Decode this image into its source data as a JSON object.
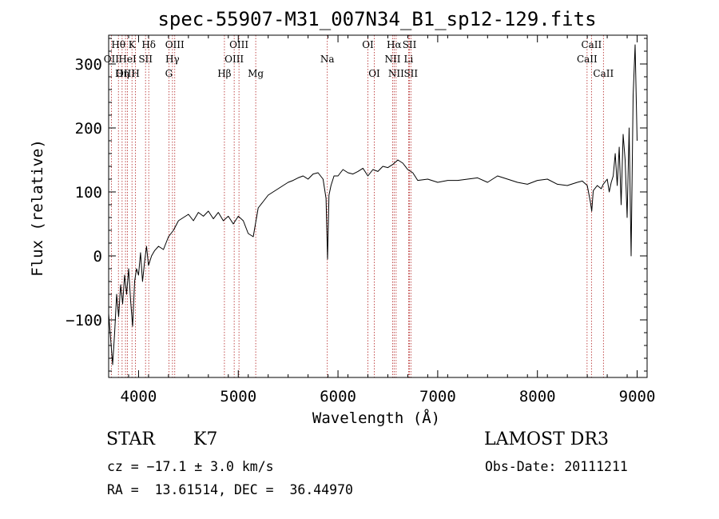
{
  "chart_data": {
    "type": "line",
    "title": "spec-55907-M31_007N34_B1_sp12-129.fits",
    "xlabel": "Wavelength (Å)",
    "ylabel": "Flux (relative)",
    "xlim": [
      3700,
      9100
    ],
    "ylim": [
      -190,
      345
    ],
    "xticks": [
      4000,
      5000,
      6000,
      7000,
      8000,
      9000
    ],
    "yticks": [
      -100,
      0,
      100,
      200,
      300
    ],
    "xtick_labels": [
      "4000",
      "5000",
      "6000",
      "7000",
      "8000",
      "9000"
    ],
    "ytick_labels": [
      "−100",
      "0",
      "100",
      "200",
      "300"
    ],
    "series": [
      {
        "name": "spectrum",
        "x": [
          3700,
          3720,
          3740,
          3760,
          3780,
          3800,
          3820,
          3840,
          3860,
          3880,
          3900,
          3920,
          3940,
          3960,
          3980,
          4000,
          4020,
          4040,
          4060,
          4080,
          4100,
          4130,
          4160,
          4200,
          4250,
          4300,
          4350,
          4400,
          4450,
          4500,
          4550,
          4600,
          4650,
          4700,
          4750,
          4800,
          4850,
          4900,
          4950,
          5000,
          5050,
          5100,
          5150,
          5200,
          5250,
          5300,
          5350,
          5400,
          5450,
          5500,
          5550,
          5600,
          5650,
          5700,
          5750,
          5800,
          5850,
          5880,
          5895,
          5910,
          5930,
          5960,
          6000,
          6050,
          6100,
          6150,
          6200,
          6250,
          6300,
          6350,
          6400,
          6450,
          6500,
          6550,
          6600,
          6650,
          6700,
          6750,
          6800,
          6900,
          7000,
          7100,
          7200,
          7300,
          7400,
          7500,
          7600,
          7700,
          7800,
          7900,
          8000,
          8100,
          8200,
          8300,
          8400,
          8450,
          8500,
          8530,
          8545,
          8560,
          8600,
          8640,
          8660,
          8700,
          8720,
          8740,
          8760,
          8780,
          8800,
          8820,
          8840,
          8860,
          8880,
          8900,
          8920,
          8940,
          8960,
          8980,
          9000
        ],
        "y": [
          -90,
          -130,
          -170,
          -120,
          -60,
          -95,
          -45,
          -75,
          -30,
          -60,
          -20,
          -70,
          -110,
          -40,
          -20,
          -30,
          5,
          -40,
          -10,
          15,
          -15,
          0,
          8,
          15,
          10,
          30,
          40,
          55,
          60,
          65,
          55,
          68,
          62,
          70,
          58,
          68,
          55,
          62,
          50,
          62,
          55,
          35,
          30,
          75,
          85,
          95,
          100,
          105,
          110,
          115,
          118,
          122,
          125,
          120,
          128,
          130,
          120,
          90,
          -5,
          95,
          110,
          125,
          125,
          135,
          130,
          128,
          132,
          137,
          125,
          135,
          132,
          140,
          138,
          143,
          150,
          145,
          135,
          130,
          118,
          120,
          115,
          118,
          118,
          120,
          122,
          115,
          125,
          120,
          115,
          112,
          118,
          120,
          112,
          110,
          115,
          117,
          110,
          85,
          70,
          102,
          110,
          105,
          112,
          120,
          100,
          115,
          125,
          160,
          110,
          170,
          80,
          190,
          150,
          60,
          200,
          0,
          250,
          330,
          180
        ]
      }
    ],
    "emission_lines": [
      {
        "label": "Hθ",
        "wave": 3798,
        "row": 1
      },
      {
        "label": "OII",
        "wave": 3727,
        "row": 2
      },
      {
        "label": "OIII",
        "wave": 3869,
        "row": 3
      },
      {
        "label": "Hη",
        "wave": 3835,
        "row": 3
      },
      {
        "label": "K",
        "wave": 3934,
        "row": 1
      },
      {
        "label": "H",
        "wave": 3969,
        "row": 3
      },
      {
        "label": "HeI",
        "wave": 3889,
        "row": 2
      },
      {
        "label": "SII",
        "wave": 4070,
        "row": 2
      },
      {
        "label": "Hδ",
        "wave": 4102,
        "row": 1
      },
      {
        "label": "OIII",
        "wave": 4363,
        "row": 1
      },
      {
        "label": "Hγ",
        "wave": 4340,
        "row": 2
      },
      {
        "label": "G",
        "wave": 4304,
        "row": 3
      },
      {
        "label": "Hβ",
        "wave": 4861,
        "row": 3
      },
      {
        "label": "OIII",
        "wave": 5007,
        "row": 1
      },
      {
        "label": "OIII",
        "wave": 4959,
        "row": 2
      },
      {
        "label": "Mg",
        "wave": 5175,
        "row": 3
      },
      {
        "label": "Na",
        "wave": 5893,
        "row": 2
      },
      {
        "label": "OI",
        "wave": 6300,
        "row": 1
      },
      {
        "label": "OI",
        "wave": 6364,
        "row": 3
      },
      {
        "label": "Hα",
        "wave": 6563,
        "row": 1
      },
      {
        "label": "NII",
        "wave": 6548,
        "row": 2
      },
      {
        "label": "NII",
        "wave": 6583,
        "row": 3
      },
      {
        "label": "SII",
        "wave": 6717,
        "row": 1
      },
      {
        "label": "Li",
        "wave": 6708,
        "row": 2
      },
      {
        "label": "SII",
        "wave": 6731,
        "row": 3
      },
      {
        "label": "CaII",
        "wave": 8542,
        "row": 1
      },
      {
        "label": "CaII",
        "wave": 8498,
        "row": 2
      },
      {
        "label": "CaII",
        "wave": 8662,
        "row": 3
      }
    ],
    "colors": {
      "spectrum": "#000000",
      "line_marker": "#b22222",
      "text": "#000000"
    }
  },
  "info": {
    "class_label": "STAR",
    "subclass": "K7",
    "survey": "LAMOST DR3",
    "cz_text": "cz = −17.1 ± 3.0 km/s",
    "obs_date_text": "Obs-Date: 20111211",
    "radec_text": "RA =  13.61514, DEC =  36.44970"
  }
}
